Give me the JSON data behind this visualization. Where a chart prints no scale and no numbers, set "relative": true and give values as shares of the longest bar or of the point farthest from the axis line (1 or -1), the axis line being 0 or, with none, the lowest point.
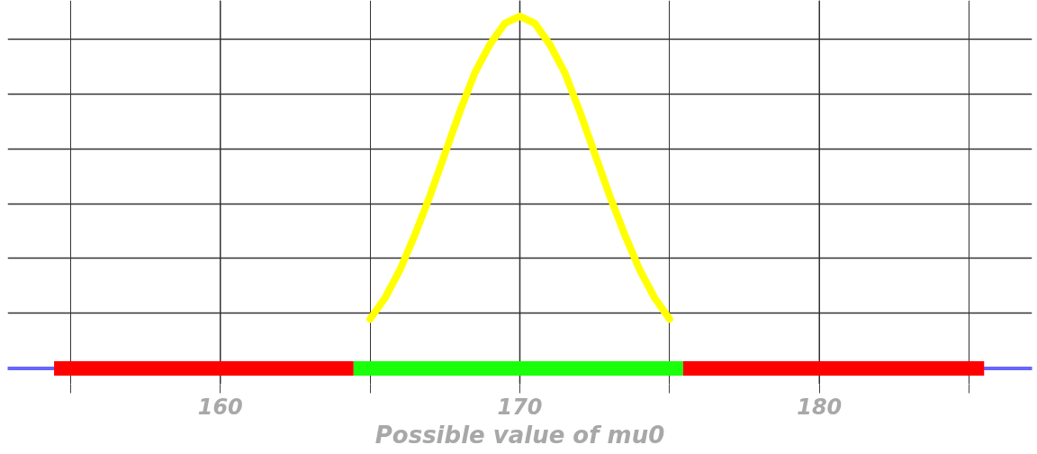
{
  "chart_data": {
    "type": "line",
    "relative": true,
    "xlabel": "Possible value of mu0",
    "xlim": [
      152.9,
      187.1
    ],
    "xticks": [
      {
        "value": 155,
        "label": null
      },
      160,
      {
        "value": 165,
        "label": null
      },
      170,
      {
        "value": 175,
        "label": null
      },
      180,
      {
        "value": 185,
        "label": null
      }
    ],
    "grid": true,
    "series": [
      {
        "color": "#6666ff",
        "x": [
          152.9,
          154.45,
          170,
          185.5,
          187.1
        ],
        "values": [
          0,
          0,
          null,
          0,
          0
        ]
      },
      {
        "color": "#ff0000",
        "x": [
          154.45,
          164.45
        ],
        "values": [
          0,
          0
        ]
      },
      {
        "color": "#1aff0a",
        "x": [
          164.45,
          175.45
        ],
        "values": [
          0,
          0
        ]
      },
      {
        "color": "#ff0000",
        "x": [
          175.45,
          185.5
        ],
        "values": [
          0,
          0
        ]
      },
      {
        "color": "#ffff00",
        "x": [
          165,
          165.5,
          166,
          166.5,
          167,
          167.5,
          168,
          168.5,
          169,
          169.5,
          170,
          170.5,
          171,
          171.5,
          172,
          172.5,
          173,
          173.5,
          174,
          174.5,
          175
        ],
        "values": [
          0.14,
          0.2,
          0.28,
          0.38,
          0.49,
          0.61,
          0.73,
          0.84,
          0.92,
          0.98,
          1,
          0.98,
          0.92,
          0.84,
          0.73,
          0.61,
          0.49,
          0.38,
          0.28,
          0.2,
          0.14
        ]
      }
    ]
  }
}
